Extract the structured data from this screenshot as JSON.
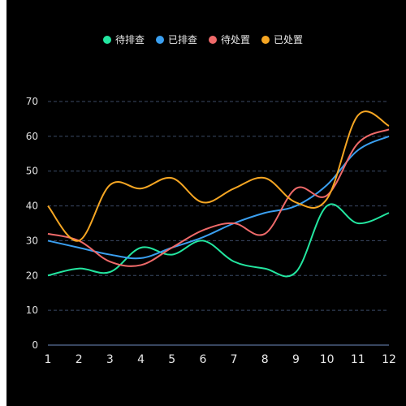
{
  "chart_data": {
    "type": "line",
    "smooth": true,
    "x": [
      "1",
      "2",
      "3",
      "4",
      "5",
      "6",
      "7",
      "8",
      "9",
      "10",
      "11",
      "12"
    ],
    "ylim": [
      0,
      70
    ],
    "yticks": [
      0,
      10,
      20,
      30,
      40,
      50,
      60,
      70
    ],
    "grid": true,
    "legend_position": "top-center",
    "series": [
      {
        "name": "待排查",
        "color": "#23e6a0",
        "values": [
          20,
          22,
          21,
          28,
          26,
          30,
          24,
          22,
          21,
          40,
          35,
          38
        ]
      },
      {
        "name": "已排查",
        "color": "#3a9ff0",
        "values": [
          30,
          28,
          26,
          25,
          28,
          31,
          35,
          38,
          40,
          46,
          56,
          60
        ]
      },
      {
        "name": "待处置",
        "color": "#ef6a6a",
        "values": [
          32,
          30,
          24,
          23,
          28,
          33,
          35,
          32,
          45,
          43,
          58,
          62
        ]
      },
      {
        "name": "已处置",
        "color": "#f6a623",
        "values": [
          40,
          30,
          46,
          45,
          48,
          41,
          45,
          48,
          41,
          42,
          66,
          63
        ]
      }
    ]
  }
}
